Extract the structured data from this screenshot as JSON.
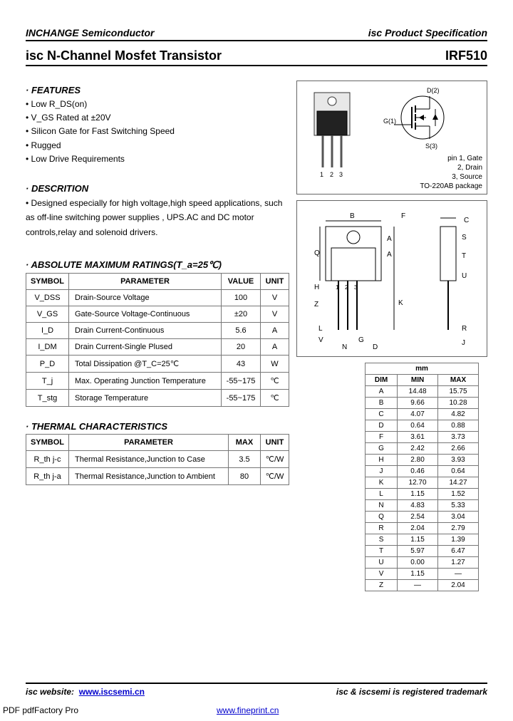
{
  "header": {
    "company": "INCHANGE Semiconductor",
    "spec": "isc Product Specification",
    "product_title": "isc N-Channel Mosfet Transistor",
    "part_number": "IRF510"
  },
  "features": {
    "title": "· FEATURES",
    "items": [
      "Low R_DS(on)",
      "V_GS  Rated at ±20V",
      "Silicon Gate for Fast Switching Speed",
      "Rugged",
      "Low Drive Requirements"
    ]
  },
  "description": {
    "title": "· DESCRITION",
    "text": "Designed especially for high voltage,high speed applications, such as off-line switching power supplies , UPS.AC and DC motor controls,relay and solenoid drivers."
  },
  "ratings": {
    "title": "· ABSOLUTE MAXIMUM RATINGS(T_a=25℃)",
    "headers": [
      "SYMBOL",
      "PARAMETER",
      "VALUE",
      "UNIT"
    ],
    "rows": [
      {
        "symbol": "V_DSS",
        "parameter": "Drain-Source Voltage",
        "value": "100",
        "unit": "V"
      },
      {
        "symbol": "V_GS",
        "parameter": "Gate-Source Voltage-Continuous",
        "value": "±20",
        "unit": "V"
      },
      {
        "symbol": "I_D",
        "parameter": "Drain Current-Continuous",
        "value": "5.6",
        "unit": "A"
      },
      {
        "symbol": "I_DM",
        "parameter": "Drain Current-Single Plused",
        "value": "20",
        "unit": "A"
      },
      {
        "symbol": "P_D",
        "parameter": "Total Dissipation @T_C=25℃",
        "value": "43",
        "unit": "W"
      },
      {
        "symbol": "T_j",
        "parameter": "Max. Operating Junction Temperature",
        "value": "-55~175",
        "unit": "℃"
      },
      {
        "symbol": "T_stg",
        "parameter": "Storage Temperature",
        "value": "-55~175",
        "unit": "℃"
      }
    ]
  },
  "thermal": {
    "title": "· THERMAL CHARACTERISTICS",
    "headers": [
      "SYMBOL",
      "PARAMETER",
      "MAX",
      "UNIT"
    ],
    "rows": [
      {
        "symbol": "R_th j-c",
        "parameter": "Thermal Resistance,Junction to Case",
        "max": "3.5",
        "unit": "℃/W"
      },
      {
        "symbol": "R_th j-a",
        "parameter": "Thermal Resistance,Junction to Ambient",
        "max": "80",
        "unit": "℃/W"
      }
    ]
  },
  "package": {
    "pin_labels": {
      "one": "1",
      "two": "2",
      "three": "3",
      "d2": "D(2)",
      "g1": "G(1)",
      "s3": "S(3)",
      "pin_note": "pin 1, Gate\n2, Drain\n3, Source\nTO-220AB package"
    },
    "diagram_letters": [
      "A",
      "B",
      "C",
      "D",
      "F",
      "G",
      "H",
      "J",
      "K",
      "L",
      "N",
      "Q",
      "R",
      "S",
      "T",
      "U",
      "V",
      "Z"
    ]
  },
  "dimensions": {
    "unit_header": "mm",
    "columns": [
      "DIM",
      "MIN",
      "MAX"
    ],
    "rows": [
      [
        "A",
        "14.48",
        "15.75"
      ],
      [
        "B",
        "9.66",
        "10.28"
      ],
      [
        "C",
        "4.07",
        "4.82"
      ],
      [
        "D",
        "0.64",
        "0.88"
      ],
      [
        "F",
        "3.61",
        "3.73"
      ],
      [
        "G",
        "2.42",
        "2.66"
      ],
      [
        "H",
        "2.80",
        "3.93"
      ],
      [
        "J",
        "0.46",
        "0.64"
      ],
      [
        "K",
        "12.70",
        "14.27"
      ],
      [
        "L",
        "1.15",
        "1.52"
      ],
      [
        "N",
        "4.83",
        "5.33"
      ],
      [
        "Q",
        "2.54",
        "3.04"
      ],
      [
        "R",
        "2.04",
        "2.79"
      ],
      [
        "S",
        "1.15",
        "1.39"
      ],
      [
        "T",
        "5.97",
        "6.47"
      ],
      [
        "U",
        "0.00",
        "1.27"
      ],
      [
        "V",
        "1.15",
        "—"
      ],
      [
        "Z",
        "—",
        "2.04"
      ]
    ]
  },
  "footer": {
    "website_label": "isc website:",
    "website_url": "www.iscsemi.cn",
    "trademark": "isc & iscsemi is registered trademark",
    "pdf_label": "PDF  pdfFactory Pro",
    "pdf_url": "www.fineprint.cn"
  }
}
